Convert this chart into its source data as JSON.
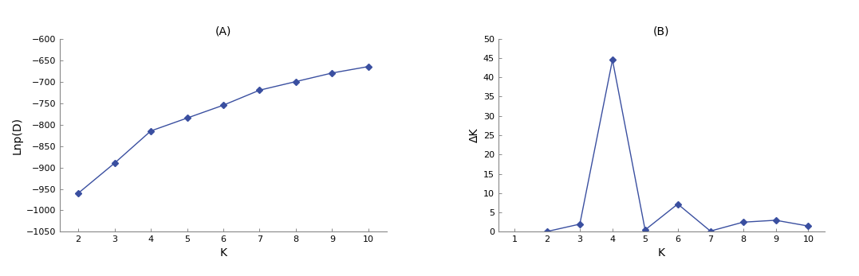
{
  "chart_a": {
    "title": "(A)",
    "x": [
      2,
      3,
      4,
      5,
      6,
      7,
      8,
      9,
      10
    ],
    "y": [
      -960,
      -890,
      -815,
      -785,
      -755,
      -720,
      -700,
      -680,
      -665
    ],
    "xlabel": "K",
    "ylabel": "Lnp(D)",
    "xlim": [
      1.5,
      10.5
    ],
    "ylim": [
      -1050,
      -600
    ],
    "yticks": [
      -1050,
      -1000,
      -950,
      -900,
      -850,
      -800,
      -750,
      -700,
      -650,
      -600
    ],
    "xticks": [
      2,
      3,
      4,
      5,
      6,
      7,
      8,
      9,
      10
    ],
    "line_color": "#3a4fa0",
    "marker": "D",
    "markersize": 4,
    "linewidth": 1.0
  },
  "chart_b": {
    "title": "(B)",
    "x": [
      2,
      3,
      4,
      5,
      6,
      7,
      8,
      9,
      10
    ],
    "y": [
      0.1,
      2.0,
      44.5,
      0.5,
      7.2,
      0.2,
      2.5,
      3.0,
      1.5
    ],
    "xlabel": "K",
    "ylabel": "ΔK",
    "xlim": [
      0.5,
      10.5
    ],
    "ylim": [
      0,
      50
    ],
    "yticks": [
      0,
      5,
      10,
      15,
      20,
      25,
      30,
      35,
      40,
      45,
      50
    ],
    "xticks": [
      1,
      2,
      3,
      4,
      5,
      6,
      7,
      8,
      9,
      10
    ],
    "line_color": "#3a4fa0",
    "marker": "D",
    "markersize": 4,
    "linewidth": 1.0
  },
  "fig_width": 10.77,
  "fig_height": 3.47,
  "dpi": 100,
  "background_color": "#ffffff",
  "spine_color": "#888888",
  "tick_label_size": 8,
  "axis_label_size": 10,
  "title_size": 10
}
